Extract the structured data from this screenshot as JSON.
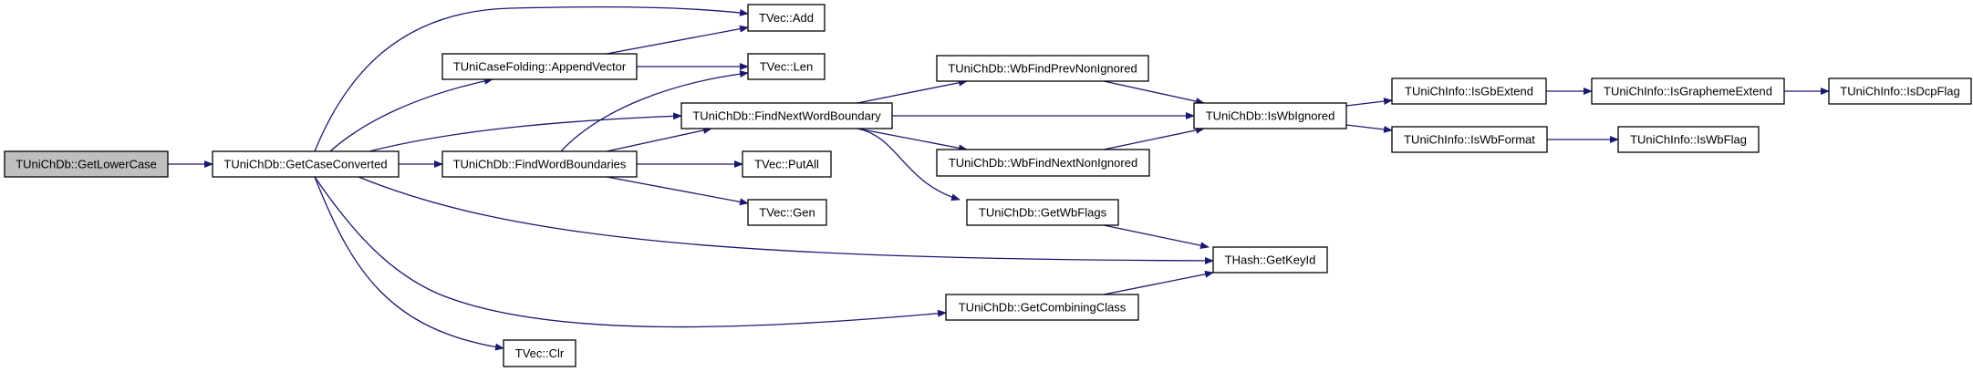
{
  "colors": {
    "edge": "#191970",
    "root_fill": "#bfbfbf",
    "node_fill": "#ffffff"
  },
  "nodes": [
    {
      "id": "getlowercase",
      "label": "TUniChDb::GetLowerCase",
      "root": true
    },
    {
      "id": "getcaseconverted",
      "label": "TUniChDb::GetCaseConverted"
    },
    {
      "id": "appendvector",
      "label": "TUniCaseFolding::AppendVector"
    },
    {
      "id": "findwordboundaries",
      "label": "TUniChDb::FindWordBoundaries"
    },
    {
      "id": "add",
      "label": "TVec::Add"
    },
    {
      "id": "len",
      "label": "TVec::Len"
    },
    {
      "id": "findnextwordboundary",
      "label": "TUniChDb::FindNextWordBoundary"
    },
    {
      "id": "putall",
      "label": "TVec::PutAll"
    },
    {
      "id": "gen",
      "label": "TVec::Gen"
    },
    {
      "id": "clr",
      "label": "TVec::Clr"
    },
    {
      "id": "wbfindprev",
      "label": "TUniChDb::WbFindPrevNonIgnored"
    },
    {
      "id": "wbfindnext",
      "label": "TUniChDb::WbFindNextNonIgnored"
    },
    {
      "id": "getwbflags",
      "label": "TUniChDb::GetWbFlags"
    },
    {
      "id": "getcombiningclass",
      "label": "TUniChDb::GetCombiningClass"
    },
    {
      "id": "iswbignored",
      "label": "TUniChDb::IsWbIgnored"
    },
    {
      "id": "getkeyid",
      "label": "THash::GetKeyId"
    },
    {
      "id": "isgbextend",
      "label": "TUniChInfo::IsGbExtend"
    },
    {
      "id": "iswbformat",
      "label": "TUniChInfo::IsWbFormat"
    },
    {
      "id": "isgraphemeextend",
      "label": "TUniChInfo::IsGraphemeExtend"
    },
    {
      "id": "isdcpflag",
      "label": "TUniChInfo::IsDcpFlag"
    },
    {
      "id": "iswbflag",
      "label": "TUniChInfo::IsWbFlag"
    }
  ],
  "edges": [
    {
      "from": "getlowercase",
      "to": "getcaseconverted"
    },
    {
      "from": "getcaseconverted",
      "to": "add"
    },
    {
      "from": "getcaseconverted",
      "to": "appendvector"
    },
    {
      "from": "getcaseconverted",
      "to": "findnextwordboundary"
    },
    {
      "from": "getcaseconverted",
      "to": "findwordboundaries"
    },
    {
      "from": "getcaseconverted",
      "to": "getkeyid"
    },
    {
      "from": "getcaseconverted",
      "to": "getcombiningclass"
    },
    {
      "from": "getcaseconverted",
      "to": "clr"
    },
    {
      "from": "appendvector",
      "to": "add"
    },
    {
      "from": "appendvector",
      "to": "len"
    },
    {
      "from": "findwordboundaries",
      "to": "len"
    },
    {
      "from": "findwordboundaries",
      "to": "findnextwordboundary"
    },
    {
      "from": "findwordboundaries",
      "to": "putall"
    },
    {
      "from": "findwordboundaries",
      "to": "gen"
    },
    {
      "from": "findnextwordboundary",
      "to": "wbfindprev"
    },
    {
      "from": "findnextwordboundary",
      "to": "iswbignored"
    },
    {
      "from": "findnextwordboundary",
      "to": "wbfindnext"
    },
    {
      "from": "findnextwordboundary",
      "to": "getwbflags"
    },
    {
      "from": "wbfindprev",
      "to": "iswbignored"
    },
    {
      "from": "wbfindnext",
      "to": "iswbignored"
    },
    {
      "from": "getwbflags",
      "to": "getkeyid"
    },
    {
      "from": "getcombiningclass",
      "to": "getkeyid"
    },
    {
      "from": "iswbignored",
      "to": "isgbextend"
    },
    {
      "from": "iswbignored",
      "to": "iswbformat"
    },
    {
      "from": "isgbextend",
      "to": "isgraphemeextend"
    },
    {
      "from": "isgraphemeextend",
      "to": "isdcpflag"
    },
    {
      "from": "iswbformat",
      "to": "iswbflag"
    }
  ]
}
